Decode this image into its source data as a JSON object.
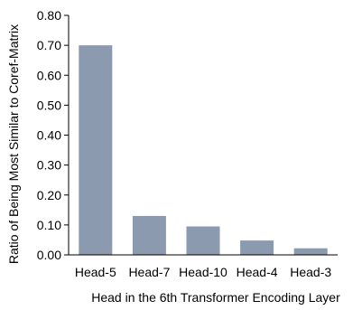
{
  "chart_data": {
    "type": "bar",
    "categories": [
      "Head-5",
      "Head-7",
      "Head-10",
      "Head-4",
      "Head-3"
    ],
    "values": [
      0.7,
      0.13,
      0.095,
      0.048,
      0.022
    ],
    "xlabel": "Head in the 6th Transformer Encoding Layer",
    "ylabel": "Ratio of Being Most Similar to Coref-Matrix",
    "ylim": [
      0,
      0.8
    ],
    "yticks": [
      "0.00",
      "0.10",
      "0.20",
      "0.30",
      "0.40",
      "0.50",
      "0.60",
      "0.70",
      "0.80"
    ],
    "grid": false,
    "bar_color": "#8c9aaf"
  }
}
